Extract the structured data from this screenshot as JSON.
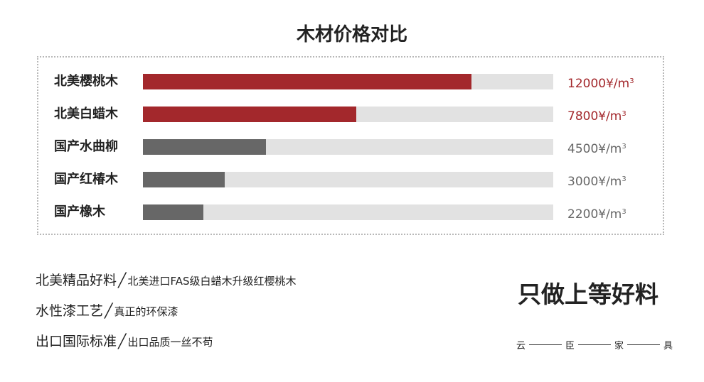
{
  "chart_data": {
    "type": "bar",
    "orientation": "horizontal",
    "title": "木材价格对比",
    "unit": "¥/m",
    "unit_superscript": "3",
    "max_value": 15000,
    "categories": [
      "北美樱桃木",
      "北美白蜡木",
      "国产水曲柳",
      "国产红椿木",
      "国产橡木"
    ],
    "values": [
      12000,
      7800,
      4500,
      3000,
      2200
    ],
    "value_labels": [
      "12000",
      "7800",
      "4500",
      "3000",
      "2200"
    ],
    "bar_colors": [
      "#a3282c",
      "#a3282c",
      "#676767",
      "#676767",
      "#676767"
    ],
    "value_colors": [
      "#a3282c",
      "#a3282c",
      "#676767",
      "#676767",
      "#676767"
    ],
    "track_color": "#e2e2e2",
    "grid": false,
    "legend": "none"
  },
  "features": [
    {
      "main": "北美精品好料",
      "sep": "╱",
      "sub": "北美进口FAS级白蜡木升级红樱桃木"
    },
    {
      "main": "水性漆工艺",
      "sep": "╱",
      "sub": "真正的环保漆"
    },
    {
      "main": "出口国际标准",
      "sep": "╱",
      "sub": "出口品质一丝不苟"
    }
  ],
  "slogan": "只做上等好料",
  "brand": [
    "云",
    "臣",
    "家",
    "具"
  ]
}
